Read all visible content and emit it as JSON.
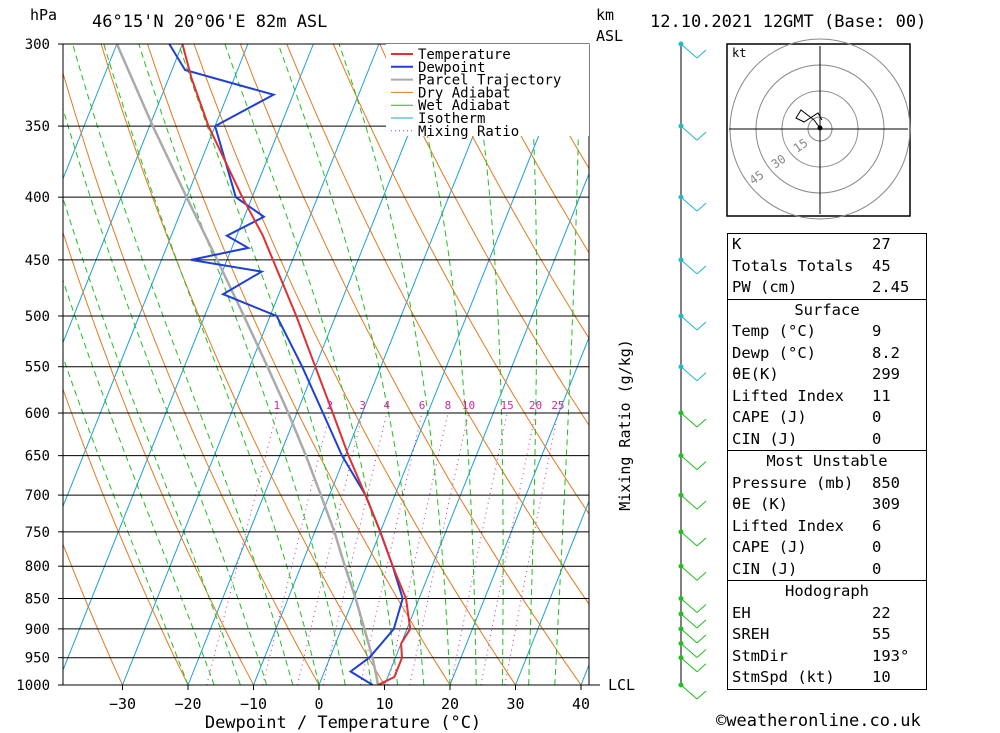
{
  "header": {
    "pressure_unit": "hPa",
    "location": "46°15'N 20°06'E 82m ASL",
    "km_label_1": "km",
    "km_label_2": "ASL",
    "datetime": "12.10.2021 12GMT (Base: 00)"
  },
  "footer": {
    "copyright": "©weatheronline.co.uk"
  },
  "chart_data": {
    "type": "skew-t log-p",
    "xlabel": "Dewpoint / Temperature (°C)",
    "ylabel_left": "hPa",
    "ylabel_right": "Mixing Ratio (g/kg)",
    "pressure_levels": [
      300,
      350,
      400,
      450,
      500,
      550,
      600,
      650,
      700,
      750,
      800,
      850,
      900,
      950,
      1000
    ],
    "pressure_tick_labels": [
      "300",
      "350",
      "400",
      "450",
      "500",
      "550",
      "600",
      "650",
      "700",
      "750",
      "800",
      "850",
      "900",
      "950",
      "1000"
    ],
    "temperature_ticks": [
      -30,
      -20,
      -10,
      0,
      10,
      20,
      30,
      40
    ],
    "temperature_tick_labels": [
      "−30",
      "−20",
      "−10",
      "0",
      "10",
      "20",
      "30",
      "40"
    ],
    "mixing_ratio_labels": [
      "1",
      "2",
      "3",
      "4",
      "6",
      "8",
      "10",
      "15",
      "20",
      "25"
    ],
    "lcl_label": "LCL",
    "legend": [
      "Temperature",
      "Dewpoint",
      "Parcel Trajectory",
      "Dry Adiabat",
      "Wet Adiabat",
      "Isotherm",
      "Mixing Ratio"
    ],
    "colors": {
      "temperature": "#e03030",
      "dewpoint": "#1f3fd6",
      "parcel": "#aaaaaa",
      "dry_adiabat": "#e07b20",
      "wet_adiabat": "#1fbf1f",
      "isotherm": "#1f9fd9",
      "mixing_ratio": "#cc2aa0",
      "wind": "#22b8c8"
    },
    "temperature_profile": [
      {
        "p": 1000,
        "t": 9.0
      },
      {
        "p": 985,
        "t": 11.0
      },
      {
        "p": 950,
        "t": 11.0
      },
      {
        "p": 925,
        "t": 10.0
      },
      {
        "p": 900,
        "t": 10.5
      },
      {
        "p": 850,
        "t": 8.0
      },
      {
        "p": 800,
        "t": 4.0
      },
      {
        "p": 750,
        "t": 0.0
      },
      {
        "p": 700,
        "t": -4.5
      },
      {
        "p": 650,
        "t": -9.5
      },
      {
        "p": 600,
        "t": -14.5
      },
      {
        "p": 550,
        "t": -20.0
      },
      {
        "p": 500,
        "t": -26.0
      },
      {
        "p": 450,
        "t": -33.0
      },
      {
        "p": 430,
        "t": -36.0
      },
      {
        "p": 400,
        "t": -41.5
      },
      {
        "p": 350,
        "t": -51.0
      },
      {
        "p": 320,
        "t": -56.5
      },
      {
        "p": 300,
        "t": -60.0
      }
    ],
    "dewpoint_profile": [
      {
        "p": 1000,
        "t": 8.2
      },
      {
        "p": 975,
        "t": 4.0
      },
      {
        "p": 950,
        "t": 6.0
      },
      {
        "p": 925,
        "t": 7.0
      },
      {
        "p": 900,
        "t": 8.0
      },
      {
        "p": 850,
        "t": 7.5
      },
      {
        "p": 800,
        "t": 4.0
      },
      {
        "p": 750,
        "t": 0.0
      },
      {
        "p": 700,
        "t": -4.5
      },
      {
        "p": 650,
        "t": -10.5
      },
      {
        "p": 600,
        "t": -16.0
      },
      {
        "p": 550,
        "t": -22.0
      },
      {
        "p": 500,
        "t": -29.0
      },
      {
        "p": 480,
        "t": -38.5
      },
      {
        "p": 460,
        "t": -34.0
      },
      {
        "p": 450,
        "t": -45.5
      },
      {
        "p": 440,
        "t": -37.5
      },
      {
        "p": 430,
        "t": -41.5
      },
      {
        "p": 415,
        "t": -37.0
      },
      {
        "p": 400,
        "t": -42.5
      },
      {
        "p": 350,
        "t": -50.0
      },
      {
        "p": 330,
        "t": -43.0
      },
      {
        "p": 315,
        "t": -58.0
      },
      {
        "p": 300,
        "t": -62.0
      }
    ],
    "parcel_profile": [
      {
        "p": 1000,
        "t": 9.0
      },
      {
        "p": 985,
        "t": 8.3
      },
      {
        "p": 950,
        "t": 6.5
      },
      {
        "p": 900,
        "t": 3.5
      },
      {
        "p": 850,
        "t": 0.3
      },
      {
        "p": 800,
        "t": -3.3
      },
      {
        "p": 750,
        "t": -7.0
      },
      {
        "p": 700,
        "t": -11.3
      },
      {
        "p": 650,
        "t": -16.0
      },
      {
        "p": 600,
        "t": -21.3
      },
      {
        "p": 550,
        "t": -27.3
      },
      {
        "p": 500,
        "t": -34.0
      },
      {
        "p": 450,
        "t": -41.5
      },
      {
        "p": 400,
        "t": -50.0
      },
      {
        "p": 350,
        "t": -59.5
      },
      {
        "p": 300,
        "t": -70.0
      }
    ],
    "wind_profile_levels": [
      1000,
      950,
      925,
      900,
      875,
      850,
      800,
      750,
      700,
      650,
      600,
      550,
      500,
      450,
      400,
      350,
      300
    ]
  },
  "hodograph": {
    "unit_label": "kt",
    "ring_labels": [
      "15",
      "30",
      "45"
    ]
  },
  "indices": {
    "general": [
      {
        "label": "K",
        "value": "27"
      },
      {
        "label": "Totals Totals",
        "value": "45"
      },
      {
        "label": "PW (cm)",
        "value": "2.45"
      }
    ],
    "surface_title": "Surface",
    "surface": [
      {
        "label": "Temp (°C)",
        "value": "9"
      },
      {
        "label": "Dewp (°C)",
        "value": "8.2"
      },
      {
        "label": "θE(K)",
        "value": "299"
      },
      {
        "label": "Lifted Index",
        "value": "11"
      },
      {
        "label": "CAPE (J)",
        "value": "0"
      },
      {
        "label": "CIN (J)",
        "value": "0"
      }
    ],
    "unstable_title": "Most Unstable",
    "unstable": [
      {
        "label": "Pressure (mb)",
        "value": "850"
      },
      {
        "label": "θE (K)",
        "value": "309"
      },
      {
        "label": "Lifted Index",
        "value": "6"
      },
      {
        "label": "CAPE (J)",
        "value": "0"
      },
      {
        "label": "CIN (J)",
        "value": "0"
      }
    ],
    "hodograph_title": "Hodograph",
    "hodograph": [
      {
        "label": "EH",
        "value": "22"
      },
      {
        "label": "SREH",
        "value": "55"
      },
      {
        "label": "StmDir",
        "value": "193°"
      },
      {
        "label": "StmSpd (kt)",
        "value": "10"
      }
    ]
  }
}
